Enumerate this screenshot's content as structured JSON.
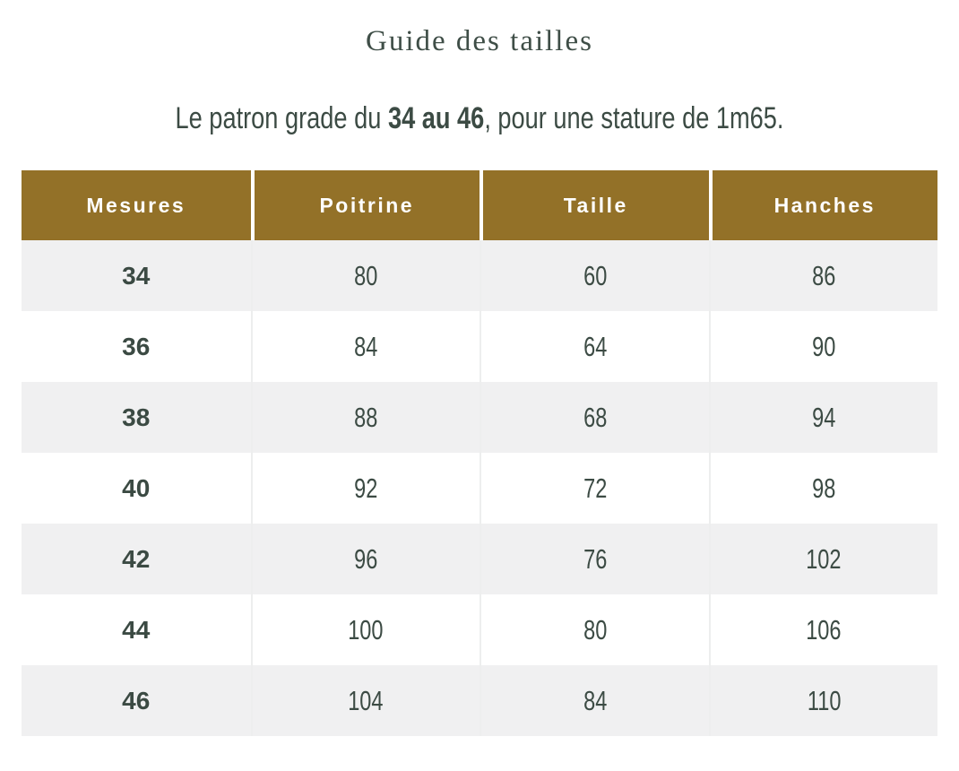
{
  "page": {
    "title": "Guide des tailles",
    "subtitle": {
      "prefix": "Le patron grade du ",
      "bold": "34 au 46",
      "suffix": ", pour une stature de 1m65."
    }
  },
  "table": {
    "headers": [
      "Mesures",
      "Poitrine",
      "Taille",
      "Hanches"
    ],
    "rows": [
      [
        "34",
        "80",
        "60",
        "86"
      ],
      [
        "36",
        "84",
        "64",
        "90"
      ],
      [
        "38",
        "88",
        "68",
        "94"
      ],
      [
        "40",
        "92",
        "72",
        "98"
      ],
      [
        "42",
        "96",
        "76",
        "102"
      ],
      [
        "44",
        "100",
        "80",
        "106"
      ],
      [
        "46",
        "104",
        "84",
        "110"
      ]
    ]
  },
  "colors": {
    "header_background": "#937128",
    "header_text": "#ffffff",
    "alt_row_background": "#f0f0f1",
    "body_text": "#3c4b44",
    "title_text": "#3f4e47"
  }
}
